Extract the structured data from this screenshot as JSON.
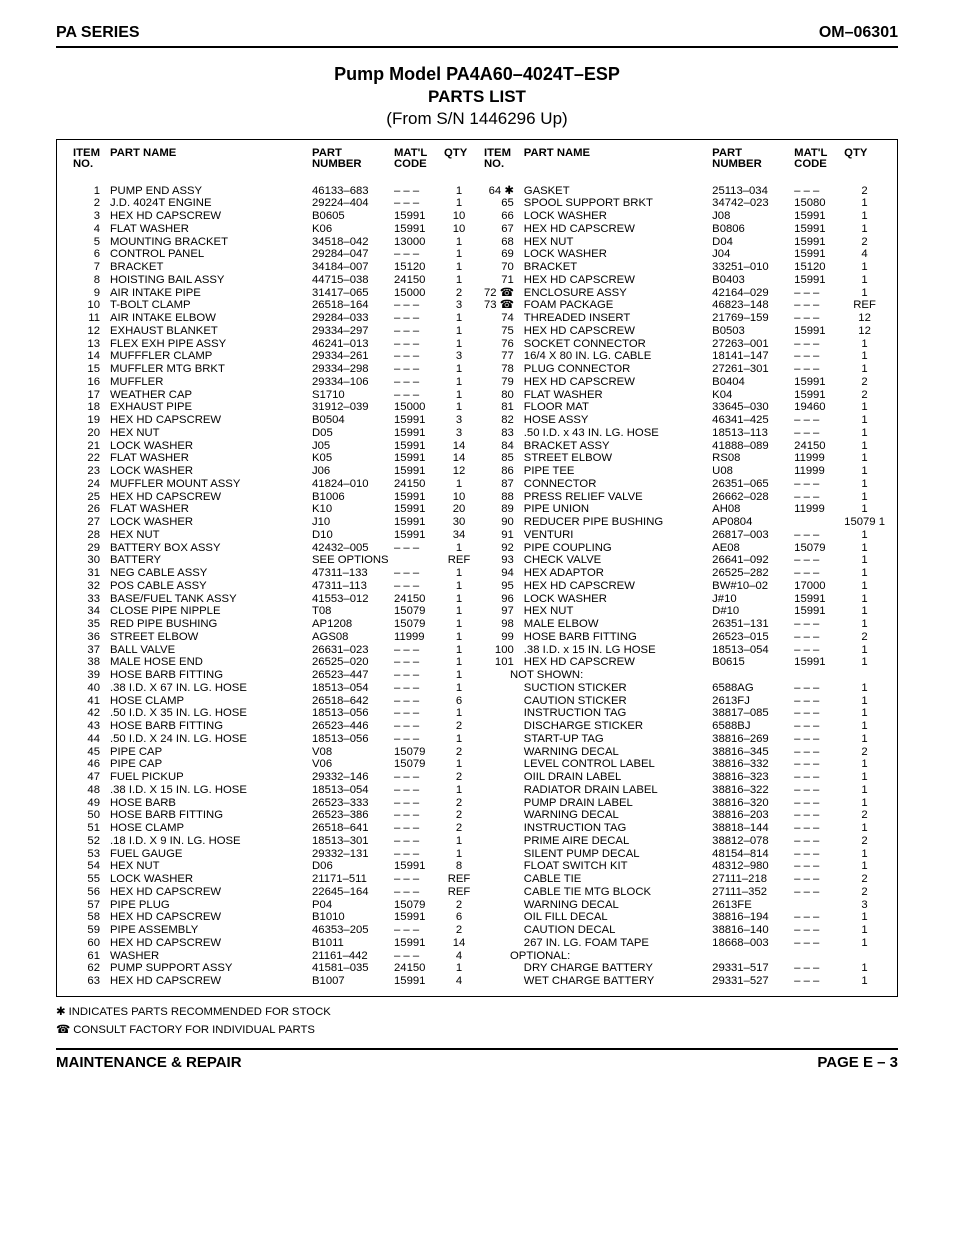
{
  "header": {
    "left": "PA SERIES",
    "right": "OM–06301"
  },
  "title": {
    "main": "Pump Model PA4A60–4024T–ESP",
    "sub": "PARTS LIST",
    "from": "(From S/N 1446296 Up)"
  },
  "columns": {
    "headers": {
      "item": "ITEM\nNO.",
      "name": "PART NAME",
      "partnum": "PART\nNUMBER",
      "matl": "MAT'L\nCODE",
      "qty": "QTY"
    }
  },
  "dash": "– – –",
  "left": [
    {
      "no": "1",
      "name": "PUMP END ASSY",
      "pn": "46133–683",
      "mc": "– – –",
      "qty": "1"
    },
    {
      "no": "2",
      "name": "J.D. 4024T ENGINE",
      "pn": "29224–404",
      "mc": "– – –",
      "qty": "1"
    },
    {
      "no": "3",
      "name": "HEX HD CAPSCREW",
      "pn": "B0605",
      "mc": "15991",
      "qty": "10"
    },
    {
      "no": "4",
      "name": "FLAT WASHER",
      "pn": "K06",
      "mc": "15991",
      "qty": "10"
    },
    {
      "no": "5",
      "name": "MOUNTING BRACKET",
      "pn": "34518–042",
      "mc": "13000",
      "qty": "1"
    },
    {
      "no": "6",
      "name": "CONTROL PANEL",
      "pn": "29284–047",
      "mc": "– – –",
      "qty": "1"
    },
    {
      "no": "7",
      "name": "BRACKET",
      "pn": "34184–007",
      "mc": "15120",
      "qty": "1"
    },
    {
      "no": "8",
      "name": "HOISTING BAIL ASSY",
      "pn": "44715–038",
      "mc": "24150",
      "qty": "1"
    },
    {
      "no": "9",
      "name": "AIR INTAKE PIPE",
      "pn": "31417–065",
      "mc": "15000",
      "qty": "2"
    },
    {
      "no": "10",
      "name": "T-BOLT CLAMP",
      "pn": "26518–164",
      "mc": "– – –",
      "qty": "3"
    },
    {
      "no": "11",
      "name": "AIR INTAKE ELBOW",
      "pn": "29284–033",
      "mc": "– – –",
      "qty": "1"
    },
    {
      "no": "12",
      "name": "EXHAUST BLANKET",
      "pn": "29334–297",
      "mc": "– – –",
      "qty": "1"
    },
    {
      "no": "13",
      "name": "FLEX EXH PIPE ASSY",
      "pn": "46241–013",
      "mc": "– – –",
      "qty": "1"
    },
    {
      "no": "14",
      "name": "MUFFFLER CLAMP",
      "pn": "29334–261",
      "mc": "– – –",
      "qty": "3"
    },
    {
      "no": "15",
      "name": "MUFFLER MTG BRKT",
      "pn": "29334–298",
      "mc": "– – –",
      "qty": "1"
    },
    {
      "no": "16",
      "name": "MUFFLER",
      "pn": "29334–106",
      "mc": "– – –",
      "qty": "1"
    },
    {
      "no": "17",
      "name": "WEATHER CAP",
      "pn": "S1710",
      "mc": "– – –",
      "qty": "1"
    },
    {
      "no": "18",
      "name": "EXHAUST PIPE",
      "pn": "31912–039",
      "mc": "15000",
      "qty": "1"
    },
    {
      "no": "19",
      "name": "HEX HD CAPSCREW",
      "pn": "B0504",
      "mc": "15991",
      "qty": "3"
    },
    {
      "no": "20",
      "name": "HEX NUT",
      "pn": "D05",
      "mc": "15991",
      "qty": "3"
    },
    {
      "no": "21",
      "name": "LOCK WASHER",
      "pn": "J05",
      "mc": "15991",
      "qty": "14"
    },
    {
      "no": "22",
      "name": "FLAT WASHER",
      "pn": "K05",
      "mc": "15991",
      "qty": "14"
    },
    {
      "no": "23",
      "name": "LOCK WASHER",
      "pn": "J06",
      "mc": "15991",
      "qty": "12"
    },
    {
      "no": "24",
      "name": "MUFFLER MOUNT ASSY",
      "pn": "41824–010",
      "mc": "24150",
      "qty": "1"
    },
    {
      "no": "25",
      "name": "HEX HD CAPSCREW",
      "pn": "B1006",
      "mc": "15991",
      "qty": "10"
    },
    {
      "no": "26",
      "name": "FLAT WASHER",
      "pn": "K10",
      "mc": "15991",
      "qty": "20"
    },
    {
      "no": "27",
      "name": "LOCK WASHER",
      "pn": "J10",
      "mc": "15991",
      "qty": "30"
    },
    {
      "no": "28",
      "name": "HEX NUT",
      "pn": "D10",
      "mc": "15991",
      "qty": "34"
    },
    {
      "no": "29",
      "name": "BATTERY BOX ASSY",
      "pn": "42432–005",
      "mc": "– – –",
      "qty": "1"
    },
    {
      "no": "30",
      "name": "BATTERY",
      "pn": "SEE OPTIONS",
      "mc": "",
      "qty": "REF"
    },
    {
      "no": "31",
      "name": "NEG CABLE ASSY",
      "pn": "47311–133",
      "mc": "– – –",
      "qty": "1"
    },
    {
      "no": "32",
      "name": "POS CABLE ASSY",
      "pn": "47311–113",
      "mc": "– – –",
      "qty": "1"
    },
    {
      "no": "33",
      "name": "BASE/FUEL TANK ASSY",
      "pn": "41553–012",
      "mc": "24150",
      "qty": "1"
    },
    {
      "no": "34",
      "name": "CLOSE PIPE NIPPLE",
      "pn": "T08",
      "mc": "15079",
      "qty": "1"
    },
    {
      "no": "35",
      "name": "RED PIPE BUSHING",
      "pn": "AP1208",
      "mc": "15079",
      "qty": "1"
    },
    {
      "no": "36",
      "name": "STREET ELBOW",
      "pn": "AGS08",
      "mc": "11999",
      "qty": "1"
    },
    {
      "no": "37",
      "name": "BALL VALVE",
      "pn": "26631–023",
      "mc": "– – –",
      "qty": "1"
    },
    {
      "no": "38",
      "name": "MALE HOSE END",
      "pn": "26525–020",
      "mc": "– – –",
      "qty": "1"
    },
    {
      "no": "39",
      "name": "HOSE BARB FITTING",
      "pn": "26523–447",
      "mc": "– – –",
      "qty": "1"
    },
    {
      "no": "40",
      "name": ".38 I.D. X 67 IN. LG. HOSE",
      "pn": "18513–054",
      "mc": "– – –",
      "qty": "1"
    },
    {
      "no": "41",
      "name": "HOSE CLAMP",
      "pn": "26518–642",
      "mc": "– – –",
      "qty": "6"
    },
    {
      "no": "42",
      "name": ".50 I.D. X 35 IN. LG. HOSE",
      "pn": "18513–056",
      "mc": "– – –",
      "qty": "1"
    },
    {
      "no": "43",
      "name": "HOSE BARB FITTING",
      "pn": "26523–446",
      "mc": "– – –",
      "qty": "2"
    },
    {
      "no": "44",
      "name": ".50 I.D. X 24 IN. LG. HOSE",
      "pn": "18513–056",
      "mc": "– – –",
      "qty": "1"
    },
    {
      "no": "45",
      "name": "PIPE CAP",
      "pn": "V08",
      "mc": "15079",
      "qty": "2"
    },
    {
      "no": "46",
      "name": "PIPE CAP",
      "pn": "V06",
      "mc": "15079",
      "qty": "1"
    },
    {
      "no": "47",
      "name": "FUEL PICKUP",
      "pn": "29332–146",
      "mc": "– – –",
      "qty": "2"
    },
    {
      "no": "48",
      "name": ".38 I.D. X 15 IN. LG. HOSE",
      "pn": "18513–054",
      "mc": "– – –",
      "qty": "1"
    },
    {
      "no": "49",
      "name": "HOSE BARB",
      "pn": "26523–333",
      "mc": "– – –",
      "qty": "2"
    },
    {
      "no": "50",
      "name": "HOSE BARB FITTING",
      "pn": "26523–386",
      "mc": "– – –",
      "qty": "2"
    },
    {
      "no": "51",
      "name": "HOSE CLAMP",
      "pn": "26518–641",
      "mc": "– – –",
      "qty": "2"
    },
    {
      "no": "52",
      "name": ".18 I.D. X 9 IN. LG. HOSE",
      "pn": "18513–301",
      "mc": "– – –",
      "qty": "1"
    },
    {
      "no": "53",
      "name": "FUEL GAUGE",
      "pn": "29332–131",
      "mc": "– – –",
      "qty": "1"
    },
    {
      "no": "54",
      "name": "HEX NUT",
      "pn": "D06",
      "mc": "15991",
      "qty": "8"
    },
    {
      "no": "55",
      "name": "LOCK WASHER",
      "pn": "21171–511",
      "mc": "– – –",
      "qty": "REF"
    },
    {
      "no": "56",
      "name": "HEX HD CAPSCREW",
      "pn": "22645–164",
      "mc": "– – –",
      "qty": "REF"
    },
    {
      "no": "57",
      "name": "PIPE PLUG",
      "pn": "P04",
      "mc": "15079",
      "qty": "2"
    },
    {
      "no": "58",
      "name": "HEX HD CAPSCREW",
      "pn": "B1010",
      "mc": "15991",
      "qty": "6"
    },
    {
      "no": "59",
      "name": "PIPE ASSEMBLY",
      "pn": "46353–205",
      "mc": "– – –",
      "qty": "2"
    },
    {
      "no": "60",
      "name": "HEX HD CAPSCREW",
      "pn": "B1011",
      "mc": "15991",
      "qty": "14"
    },
    {
      "no": "61",
      "name": "WASHER",
      "pn": "21161–442",
      "mc": "– – –",
      "qty": "4"
    },
    {
      "no": "62",
      "name": "PUMP SUPPORT ASSY",
      "pn": "41581–035",
      "mc": "24150",
      "qty": "1"
    },
    {
      "no": "63",
      "name": "HEX HD CAPSCREW",
      "pn": "B1007",
      "mc": "15991",
      "qty": "4"
    }
  ],
  "right": [
    {
      "no": "64",
      "mark": "✱",
      "name": "GASKET",
      "pn": "25113–034",
      "mc": "– – –",
      "qty": "2"
    },
    {
      "no": "65",
      "name": "SPOOL SUPPORT BRKT",
      "pn": "34742–023",
      "mc": "15080",
      "qty": "1"
    },
    {
      "no": "66",
      "name": "LOCK WASHER",
      "pn": "J08",
      "mc": "15991",
      "qty": "1"
    },
    {
      "no": "67",
      "name": "HEX HD CAPSCREW",
      "pn": "B0806",
      "mc": "15991",
      "qty": "1"
    },
    {
      "no": "68",
      "name": "HEX NUT",
      "pn": "D04",
      "mc": "15991",
      "qty": "2"
    },
    {
      "no": "69",
      "name": "LOCK WASHER",
      "pn": "J04",
      "mc": "15991",
      "qty": "4"
    },
    {
      "no": "70",
      "name": "BRACKET",
      "pn": "33251–010",
      "mc": "15120",
      "qty": "1"
    },
    {
      "no": "71",
      "name": "HEX HD CAPSCREW",
      "pn": "B0403",
      "mc": "15991",
      "qty": "1"
    },
    {
      "no": "72",
      "mark": "☎",
      "name": "ENCLOSURE ASSY",
      "pn": "42164–029",
      "mc": "– – –",
      "qty": "1"
    },
    {
      "no": "73",
      "mark": "☎",
      "name": "FOAM PACKAGE",
      "pn": "46823–148",
      "mc": "– – –",
      "qty": "REF"
    },
    {
      "no": "74",
      "name": "THREADED INSERT",
      "pn": "21769–159",
      "mc": "– – –",
      "qty": "12"
    },
    {
      "no": "75",
      "name": "HEX HD CAPSCREW",
      "pn": "B0503",
      "mc": "15991",
      "qty": "12"
    },
    {
      "no": "76",
      "name": "SOCKET CONNECTOR",
      "pn": "27263–001",
      "mc": "– – –",
      "qty": "1"
    },
    {
      "no": "77",
      "name": "16/4 X 80 IN. LG. CABLE",
      "pn": "18141–147",
      "mc": "– – –",
      "qty": "1"
    },
    {
      "no": "78",
      "name": "PLUG CONNECTOR",
      "pn": "27261–301",
      "mc": "– – –",
      "qty": "1"
    },
    {
      "no": "79",
      "name": "HEX HD CAPSCREW",
      "pn": "B0404",
      "mc": "15991",
      "qty": "2"
    },
    {
      "no": "80",
      "name": "FLAT WASHER",
      "pn": "K04",
      "mc": "15991",
      "qty": "2"
    },
    {
      "no": "81",
      "name": "FLOOR MAT",
      "pn": "33645–030",
      "mc": "19460",
      "qty": "1"
    },
    {
      "no": "82",
      "name": "HOSE ASSY",
      "pn": "46341–425",
      "mc": "– – –",
      "qty": "1"
    },
    {
      "no": "83",
      "name": ".50 I.D. x 43 IN. LG. HOSE",
      "pn": "18513–113",
      "mc": "– – –",
      "qty": "1"
    },
    {
      "no": "84",
      "name": "BRACKET ASSY",
      "pn": "41888–089",
      "mc": "24150",
      "qty": "1"
    },
    {
      "no": "85",
      "name": "STREET ELBOW",
      "pn": "RS08",
      "mc": "11999",
      "qty": "1"
    },
    {
      "no": "86",
      "name": "PIPE TEE",
      "pn": "U08",
      "mc": "11999",
      "qty": "1"
    },
    {
      "no": "87",
      "name": "CONNECTOR",
      "pn": "26351–065",
      "mc": "– – –",
      "qty": "1"
    },
    {
      "no": "88",
      "name": "PRESS RELIEF VALVE",
      "pn": "26662–028",
      "mc": "– – –",
      "qty": "1"
    },
    {
      "no": "89",
      "name": "PIPE UNION",
      "pn": "AH08",
      "mc": "11999",
      "qty": "1"
    },
    {
      "no": "90",
      "name": "REDUCER PIPE BUSHING",
      "pn": "AP0804",
      "mc": "",
      "qty": "15079   1"
    },
    {
      "no": "91",
      "name": "VENTURI",
      "pn": "26817–003",
      "mc": "– – –",
      "qty": "1"
    },
    {
      "no": "92",
      "name": "PIPE COUPLING",
      "pn": "AE08",
      "mc": "15079",
      "qty": "1"
    },
    {
      "no": "93",
      "name": "CHECK VALVE",
      "pn": "26641–092",
      "mc": "– – –",
      "qty": "1"
    },
    {
      "no": "94",
      "name": "HEX ADAPTOR",
      "pn": "26525–282",
      "mc": "– – –",
      "qty": "1"
    },
    {
      "no": "95",
      "name": "HEX HD CAPSCREW",
      "pn": "BW#10–02",
      "mc": "17000",
      "qty": "1"
    },
    {
      "no": "96",
      "name": "LOCK WASHER",
      "pn": "J#10",
      "mc": "15991",
      "qty": "1"
    },
    {
      "no": "97",
      "name": "HEX NUT",
      "pn": "D#10",
      "mc": "15991",
      "qty": "1"
    },
    {
      "no": "98",
      "name": "MALE ELBOW",
      "pn": "26351–131",
      "mc": "– – –",
      "qty": "1"
    },
    {
      "no": "99",
      "name": "HOSE BARB FITTING",
      "pn": "26523–015",
      "mc": "– – –",
      "qty": "2"
    },
    {
      "no": "100",
      "name": ".38 I.D. x 15 IN. LG HOSE",
      "pn": "18513–054",
      "mc": "– – –",
      "qty": "1"
    },
    {
      "no": "101",
      "name": "HEX HD CAPSCREW",
      "pn": "B0615",
      "mc": "15991",
      "qty": "1"
    }
  ],
  "notshown_label": "NOT SHOWN:",
  "notshown": [
    {
      "name": "SUCTION STICKER",
      "pn": "6588AG",
      "mc": "– – –",
      "qty": "1"
    },
    {
      "name": "CAUTION STICKER",
      "pn": "2613FJ",
      "mc": "– – –",
      "qty": "1"
    },
    {
      "name": "INSTRUCTION TAG",
      "pn": "38817–085",
      "mc": "– – –",
      "qty": "1"
    },
    {
      "name": "DISCHARGE STICKER",
      "pn": "6588BJ",
      "mc": "– – –",
      "qty": "1"
    },
    {
      "name": "START-UP TAG",
      "pn": "38816–269",
      "mc": "– – –",
      "qty": "1"
    },
    {
      "name": "WARNING DECAL",
      "pn": "38816–345",
      "mc": "– – –",
      "qty": "2"
    },
    {
      "name": "LEVEL CONTROL LABEL",
      "pn": "38816–332",
      "mc": "– – –",
      "qty": "1"
    },
    {
      "name": "OIIL DRAIN LABEL",
      "pn": "38816–323",
      "mc": "– – –",
      "qty": "1"
    },
    {
      "name": "RADIATOR DRAIN LABEL",
      "pn": "38816–322",
      "mc": "– – –",
      "qty": "1"
    },
    {
      "name": "PUMP DRAIN LABEL",
      "pn": "38816–320",
      "mc": "– – –",
      "qty": "1"
    },
    {
      "name": "WARNING DECAL",
      "pn": "38816–203",
      "mc": "– – –",
      "qty": "2"
    },
    {
      "name": "INSTRUCTION TAG",
      "pn": "38818–144",
      "mc": "– – –",
      "qty": "1"
    },
    {
      "name": "PRIME AIRE DECAL",
      "pn": "38812–078",
      "mc": "– – –",
      "qty": "2"
    },
    {
      "name": "SILENT PUMP DECAL",
      "pn": "48154–814",
      "mc": "– – –",
      "qty": "1"
    },
    {
      "name": "FLOAT SWITCH KIT",
      "pn": "48312–980",
      "mc": "– – –",
      "qty": "1"
    },
    {
      "name": "CABLE TIE",
      "pn": "27111–218",
      "mc": "– – –",
      "qty": "2"
    },
    {
      "name": "CABLE TIE MTG BLOCK",
      "pn": "27111–352",
      "mc": "– – –",
      "qty": "2"
    },
    {
      "name": "WARNING DECAL",
      "pn": "2613FE",
      "mc": "",
      "qty": "3"
    },
    {
      "name": "OIL FILL DECAL",
      "pn": "38816–194",
      "mc": "– – –",
      "qty": "1"
    },
    {
      "name": "CAUTION DECAL",
      "pn": "38816–140",
      "mc": "– – –",
      "qty": "1"
    },
    {
      "name": "267 IN. LG. FOAM TAPE",
      "pn": "18668–003",
      "mc": "– – –",
      "qty": "1"
    }
  ],
  "optional_label": "OPTIONAL:",
  "optional": [
    {
      "name": "DRY CHARGE BATTERY",
      "pn": "29331–517",
      "mc": "– – –",
      "qty": "1"
    },
    {
      "name": "WET CHARGE BATTERY",
      "pn": "29331–527",
      "mc": "– – –",
      "qty": "1"
    }
  ],
  "notes": {
    "stock": "✱ INDICATES PARTS RECOMMENDED FOR STOCK",
    "consult": "☎ CONSULT FACTORY FOR INDIVIDUAL PARTS"
  },
  "footer": {
    "left": "MAINTENANCE & REPAIR",
    "right": "PAGE E – 3"
  }
}
